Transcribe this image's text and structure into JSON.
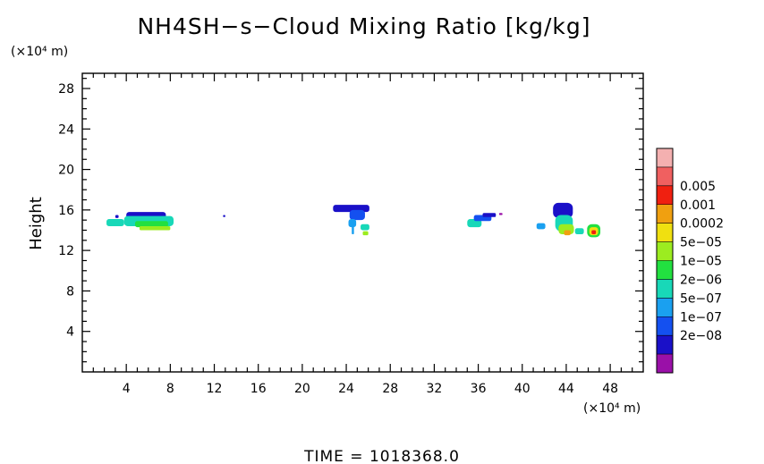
{
  "chart_data": {
    "type": "heatmap",
    "title": "NH4SH−s−Cloud Mixing Ratio [kg/kg]",
    "ylabel": "Height",
    "xlabel": "",
    "x_unit": "(×10⁴ m)",
    "y_unit": "(×10⁴ m)",
    "footer": "TIME  =  1018368.0",
    "xlim": [
      0,
      51
    ],
    "ylim": [
      0,
      29.5
    ],
    "xticks": [
      4,
      8,
      12,
      16,
      20,
      24,
      28,
      32,
      36,
      40,
      44,
      48
    ],
    "yticks": [
      4,
      8,
      12,
      16,
      20,
      24,
      28
    ],
    "grid": false,
    "colorbar": {
      "levels": [
        "0.005",
        "0.001",
        "0.0002",
        "5e−05",
        "1e−05",
        "2e−06",
        "5e−07",
        "1e−07",
        "2e−08"
      ],
      "colors": [
        "#9a10a8",
        "#1a10c8",
        "#1450f0",
        "#1aa0f0",
        "#18d8b8",
        "#22e040",
        "#9cec20",
        "#f0e010",
        "#f0a010",
        "#f02010",
        "#f06060",
        "#f4b0b0"
      ]
    },
    "cells": [
      {
        "x": 2.2,
        "y": 14.4,
        "w": 1.6,
        "h": 0.7,
        "v": 4
      },
      {
        "x": 3.0,
        "y": 15.2,
        "w": 0.3,
        "h": 0.3,
        "v": 1
      },
      {
        "x": 4.0,
        "y": 15.0,
        "w": 3.6,
        "h": 0.8,
        "v": 1
      },
      {
        "x": 3.8,
        "y": 14.4,
        "w": 4.5,
        "h": 1.0,
        "v": 4
      },
      {
        "x": 4.8,
        "y": 14.3,
        "w": 3.0,
        "h": 0.6,
        "v": 5
      },
      {
        "x": 5.2,
        "y": 14.0,
        "w": 2.8,
        "h": 0.4,
        "v": 6
      },
      {
        "x": 12.8,
        "y": 15.3,
        "w": 0.2,
        "h": 0.2,
        "v": 1
      },
      {
        "x": 22.8,
        "y": 15.8,
        "w": 3.3,
        "h": 0.7,
        "v": 1
      },
      {
        "x": 24.3,
        "y": 15.0,
        "w": 1.4,
        "h": 1.0,
        "v": 2
      },
      {
        "x": 24.2,
        "y": 14.3,
        "w": 0.7,
        "h": 0.8,
        "v": 3
      },
      {
        "x": 24.5,
        "y": 13.6,
        "w": 0.2,
        "h": 0.8,
        "v": 3
      },
      {
        "x": 25.3,
        "y": 14.0,
        "w": 0.8,
        "h": 0.6,
        "v": 4
      },
      {
        "x": 25.5,
        "y": 13.5,
        "w": 0.5,
        "h": 0.4,
        "v": 6
      },
      {
        "x": 35.0,
        "y": 14.3,
        "w": 1.3,
        "h": 0.8,
        "v": 4
      },
      {
        "x": 35.6,
        "y": 14.9,
        "w": 1.6,
        "h": 0.6,
        "v": 2
      },
      {
        "x": 36.4,
        "y": 15.3,
        "w": 1.2,
        "h": 0.4,
        "v": 1
      },
      {
        "x": 37.9,
        "y": 15.5,
        "w": 0.3,
        "h": 0.2,
        "v": 0
      },
      {
        "x": 41.3,
        "y": 14.1,
        "w": 0.8,
        "h": 0.6,
        "v": 3
      },
      {
        "x": 42.8,
        "y": 15.2,
        "w": 1.8,
        "h": 1.5,
        "v": 1
      },
      {
        "x": 43.0,
        "y": 13.9,
        "w": 1.6,
        "h": 1.6,
        "v": 4
      },
      {
        "x": 43.3,
        "y": 13.6,
        "w": 1.4,
        "h": 1.0,
        "v": 6
      },
      {
        "x": 43.8,
        "y": 13.5,
        "w": 0.6,
        "h": 0.5,
        "v": 8
      },
      {
        "x": 44.8,
        "y": 13.6,
        "w": 0.8,
        "h": 0.6,
        "v": 4
      },
      {
        "x": 45.9,
        "y": 13.3,
        "w": 1.2,
        "h": 1.3,
        "v": 5
      },
      {
        "x": 46.1,
        "y": 13.5,
        "w": 0.8,
        "h": 0.8,
        "v": 7
      },
      {
        "x": 46.3,
        "y": 13.6,
        "w": 0.4,
        "h": 0.4,
        "v": 9
      }
    ]
  }
}
